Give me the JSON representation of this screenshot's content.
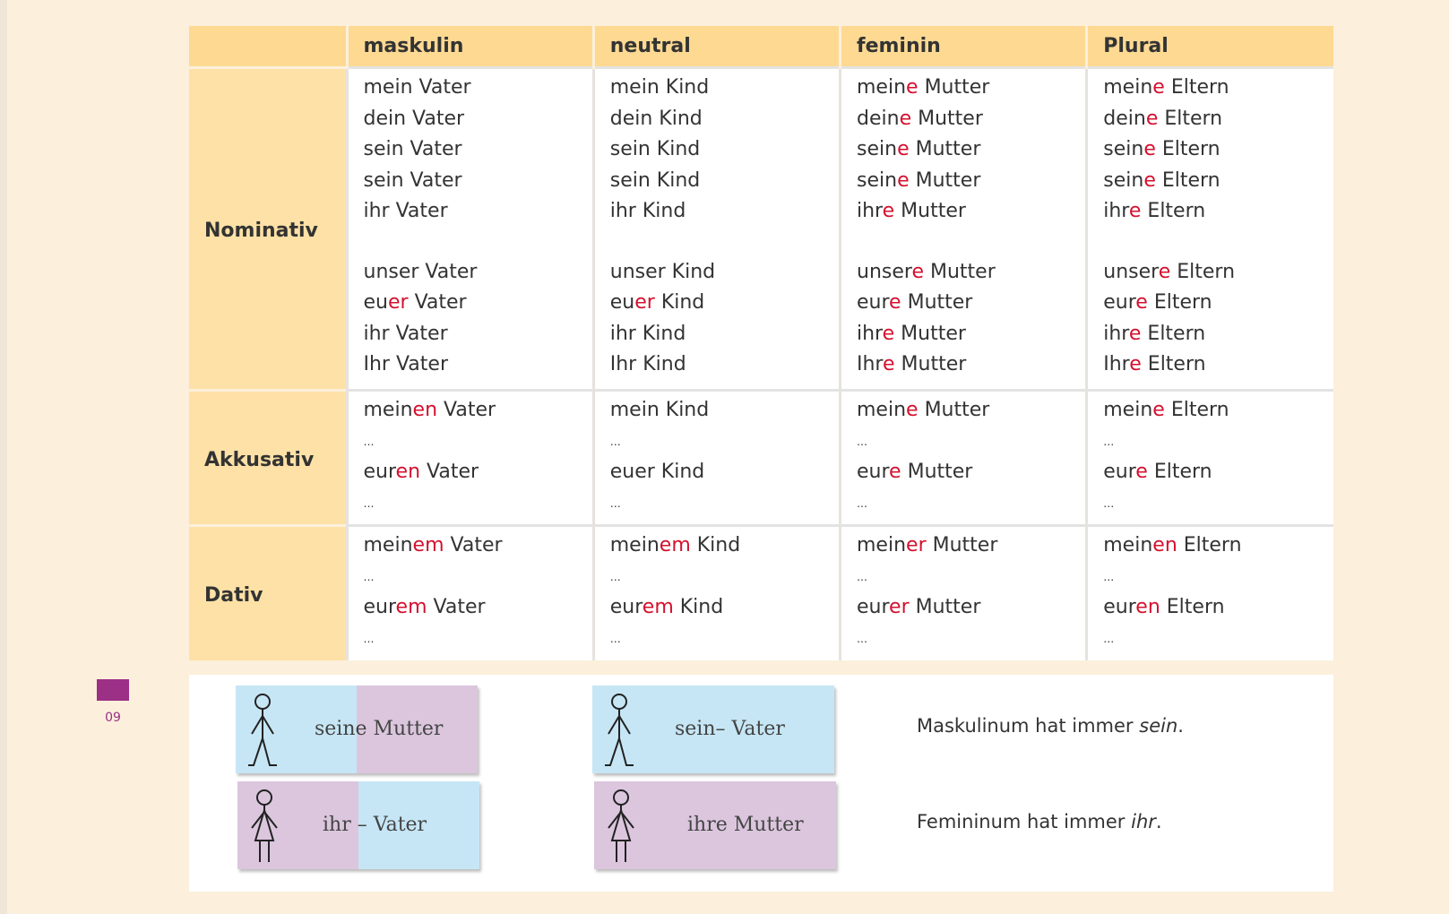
{
  "table": {
    "header": [
      "maskulin",
      "neutral",
      "feminin",
      "Plural"
    ],
    "rows": [
      {
        "case": "Nominativ",
        "cells": [
          [
            [
              [
                "mein Vater"
              ],
              [
                "dein Vater"
              ],
              [
                "sein Vater"
              ],
              [
                "sein Vater"
              ],
              [
                "ihr Vater"
              ]
            ],
            [
              [
                "unser Vater"
              ],
              [
                "eu",
                {
                  "red": "er"
                },
                " Vater"
              ],
              [
                "ihr Vater"
              ],
              [
                "Ihr Vater"
              ]
            ]
          ],
          [
            [
              [
                "mein Kind"
              ],
              [
                "dein Kind"
              ],
              [
                "sein Kind"
              ],
              [
                "sein Kind"
              ],
              [
                "ihr Kind"
              ]
            ],
            [
              [
                "unser Kind"
              ],
              [
                "eu",
                {
                  "red": "er"
                },
                " Kind"
              ],
              [
                "ihr Kind"
              ],
              [
                "Ihr Kind"
              ]
            ]
          ],
          [
            [
              [
                "mein",
                {
                  "red": "e"
                },
                " Mutter"
              ],
              [
                "dein",
                {
                  "red": "e"
                },
                " Mutter"
              ],
              [
                "sein",
                {
                  "red": "e"
                },
                " Mutter"
              ],
              [
                "sein",
                {
                  "red": "e"
                },
                " Mutter"
              ],
              [
                "ihr",
                {
                  "red": "e"
                },
                " Mutter"
              ]
            ],
            [
              [
                "unser",
                {
                  "red": "e"
                },
                " Mutter"
              ],
              [
                "eur",
                {
                  "red": "e"
                },
                " Mutter"
              ],
              [
                "ihr",
                {
                  "red": "e"
                },
                " Mutter"
              ],
              [
                "Ihr",
                {
                  "red": "e"
                },
                " Mutter"
              ]
            ]
          ],
          [
            [
              [
                "mein",
                {
                  "red": "e"
                },
                " Eltern"
              ],
              [
                "dein",
                {
                  "red": "e"
                },
                " Eltern"
              ],
              [
                "sein",
                {
                  "red": "e"
                },
                " Eltern"
              ],
              [
                "sein",
                {
                  "red": "e"
                },
                " Eltern"
              ],
              [
                "ihr",
                {
                  "red": "e"
                },
                " Eltern"
              ]
            ],
            [
              [
                "unser",
                {
                  "red": "e"
                },
                " Eltern"
              ],
              [
                "eur",
                {
                  "red": "e"
                },
                " Eltern"
              ],
              [
                "ihr",
                {
                  "red": "e"
                },
                " Eltern"
              ],
              [
                "Ihr",
                {
                  "red": "e"
                },
                " Eltern"
              ]
            ]
          ]
        ]
      },
      {
        "case": "Akkusativ",
        "cells": [
          [
            [
              [
                "mein",
                {
                  "red": "en"
                },
                " Vater"
              ],
              [
                "…"
              ],
              [
                "eur",
                {
                  "red": "en"
                },
                " Vater"
              ],
              [
                "…"
              ]
            ]
          ],
          [
            [
              [
                "mein Kind"
              ],
              [
                "…"
              ],
              [
                "euer Kind"
              ],
              [
                "…"
              ]
            ]
          ],
          [
            [
              [
                "mein",
                {
                  "red": "e"
                },
                " Mutter"
              ],
              [
                "…"
              ],
              [
                "eur",
                {
                  "red": "e"
                },
                " Mutter"
              ],
              [
                "…"
              ]
            ]
          ],
          [
            [
              [
                "mein",
                {
                  "red": "e"
                },
                " Eltern"
              ],
              [
                "…"
              ],
              [
                "eur",
                {
                  "red": "e"
                },
                " Eltern"
              ],
              [
                "…"
              ]
            ]
          ]
        ]
      },
      {
        "case": "Dativ",
        "cells": [
          [
            [
              [
                "mein",
                {
                  "red": "em"
                },
                " Vater"
              ],
              [
                "…"
              ],
              [
                "eur",
                {
                  "red": "em"
                },
                " Vater"
              ],
              [
                "…"
              ]
            ]
          ],
          [
            [
              [
                "mein",
                {
                  "red": "em"
                },
                " Kind"
              ],
              [
                "…"
              ],
              [
                "eur",
                {
                  "red": "em"
                },
                " Kind"
              ],
              [
                "…"
              ]
            ]
          ],
          [
            [
              [
                "mein",
                {
                  "red": "er"
                },
                " Mutter"
              ],
              [
                "…"
              ],
              [
                "eur",
                {
                  "red": "er"
                },
                " Mutter"
              ],
              [
                "…"
              ]
            ]
          ],
          [
            [
              [
                "mein",
                {
                  "red": "en"
                },
                " Eltern"
              ],
              [
                "…"
              ],
              [
                "eur",
                {
                  "red": "en"
                },
                " Eltern"
              ],
              [
                "…"
              ]
            ]
          ]
        ]
      }
    ]
  },
  "badge": "09",
  "cards": [
    "seine Mutter",
    "sein– Vater",
    "ihr – Vater",
    "ihre Mutter"
  ],
  "notes": [
    [
      "Maskulinum hat immer ",
      {
        "em": "sein"
      },
      "."
    ],
    [
      "Femininum hat immer ",
      {
        "em": "ihr"
      },
      "."
    ]
  ]
}
